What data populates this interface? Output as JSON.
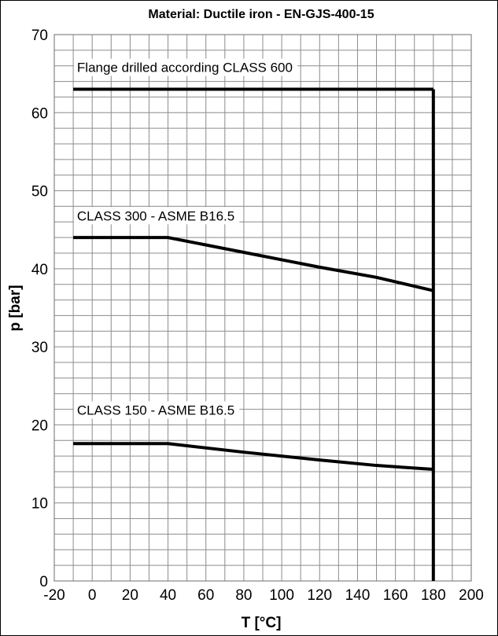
{
  "chart_data": {
    "type": "line",
    "title": "Material: Ductile iron - EN-GJS-400-15",
    "xlabel": "T [°C]",
    "ylabel": "p [bar]",
    "xlim": [
      -20,
      200
    ],
    "ylim": [
      0,
      70
    ],
    "x_ticks": [
      -20,
      0,
      20,
      40,
      60,
      80,
      100,
      120,
      140,
      160,
      180,
      200
    ],
    "y_ticks": [
      0,
      10,
      20,
      30,
      40,
      50,
      60,
      70
    ],
    "grid": true,
    "minor_grid": {
      "x_step": 10,
      "y_step": 2
    },
    "series": [
      {
        "name": "Flange drilled according CLASS 600",
        "x": [
          -10,
          180
        ],
        "y": [
          63,
          63
        ]
      },
      {
        "name": "CLASS 300 - ASME B16.5",
        "x": [
          -10,
          40,
          80,
          120,
          150,
          180
        ],
        "y": [
          44,
          44,
          42.1,
          40.2,
          38.9,
          37.2
        ]
      },
      {
        "name": "CLASS 150 - ASME B16.5",
        "x": [
          -10,
          40,
          80,
          120,
          150,
          180
        ],
        "y": [
          17.6,
          17.6,
          16.5,
          15.5,
          14.8,
          14.3
        ]
      },
      {
        "name": "",
        "x": [
          180,
          180
        ],
        "y": [
          0,
          63
        ]
      }
    ],
    "annotations": [
      {
        "text": "Flange drilled according CLASS 600",
        "x": -8,
        "y": 65.2
      },
      {
        "text": "CLASS 300 - ASME B16.5",
        "x": -8,
        "y": 46.2
      },
      {
        "text": "CLASS 150 - ASME B16.5",
        "x": -8,
        "y": 21.3
      }
    ],
    "line_color": "#000000",
    "grid_color": "#8c8c8c"
  }
}
